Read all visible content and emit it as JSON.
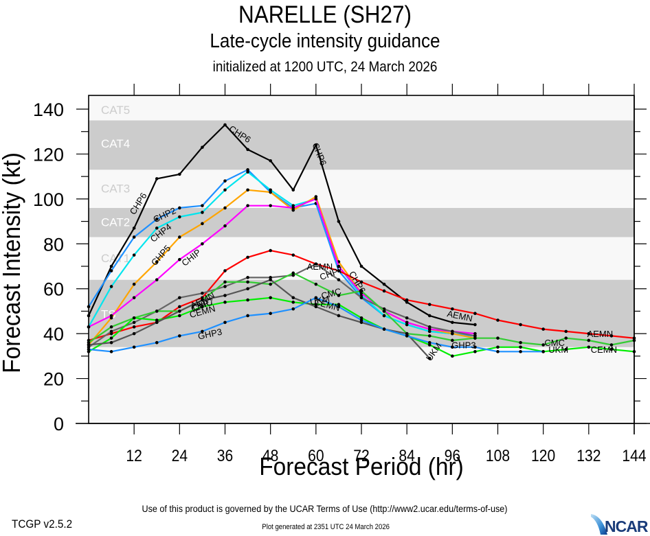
{
  "header": {
    "title": "NARELLE (SH27)",
    "subtitle": "Late-cycle intensity guidance",
    "init_line": "initialized at 1200 UTC, 24 March 2026"
  },
  "footer": {
    "terms": "Use of this product is governed by the UCAR Terms of Use (http://www2.ucar.edu/terms-of-use)",
    "version": "TCGP v2.5.2",
    "generated": "Plot generated at 2351 UTC   24 March 2026",
    "logo": "NCAR"
  },
  "chart_data": {
    "type": "line",
    "title": "NARELLE (SH27)",
    "subtitle": "Late-cycle intensity guidance",
    "xlabel": "Forecast Period (hr)",
    "ylabel": "Forecast Intensity (kt)",
    "xlim": [
      0,
      144
    ],
    "ylim": [
      0,
      140
    ],
    "xticks": [
      12,
      24,
      36,
      48,
      60,
      72,
      84,
      96,
      108,
      120,
      132,
      144
    ],
    "yticks": [
      0,
      20,
      40,
      60,
      80,
      100,
      120,
      140
    ],
    "grid": false,
    "bands": [
      {
        "label": "TS",
        "from": 34,
        "to": 64,
        "shade": "#cccccc",
        "label_color": "#ffffff",
        "label_at": 49
      },
      {
        "label": "CAT1",
        "from": 64,
        "to": 83,
        "shade": "#f8f8f8",
        "label_color": "#cccccc",
        "label_at": 74
      },
      {
        "label": "CAT2",
        "from": 83,
        "to": 96,
        "shade": "#cccccc",
        "label_color": "#ffffff",
        "label_at": 90
      },
      {
        "label": "CAT3",
        "from": 96,
        "to": 113,
        "shade": "#f8f8f8",
        "label_color": "#cccccc",
        "label_at": 105
      },
      {
        "label": "CAT4",
        "from": 113,
        "to": 135,
        "shade": "#cccccc",
        "label_color": "#ffffff",
        "label_at": 125
      },
      {
        "label": "CAT5",
        "from": 135,
        "to": 140,
        "shade": "#f8f8f8",
        "label_color": "#cccccc",
        "label_at": 140
      }
    ],
    "series": [
      {
        "name": "CHP6",
        "color": "#000000",
        "x": [
          0,
          6,
          12,
          18,
          24,
          30,
          36,
          42,
          48,
          54,
          60,
          66,
          72,
          78,
          84,
          90,
          96,
          102
        ],
        "y": [
          48,
          70,
          87,
          109,
          111,
          123,
          133,
          122,
          117,
          104,
          124,
          90,
          70,
          62,
          54,
          48,
          45,
          44
        ],
        "labels": [
          {
            "x": 13,
            "y": 98,
            "angle": -58
          },
          {
            "x": 40,
            "y": 129,
            "angle": 33
          },
          {
            "x": 61,
            "y": 120,
            "angle": 68
          },
          {
            "x": 71,
            "y": 63,
            "angle": 60
          }
        ]
      },
      {
        "name": "CHP2",
        "color": "#1e90ff",
        "x": [
          0,
          6,
          12,
          18,
          24,
          30,
          36,
          42,
          48,
          54,
          60,
          66,
          72,
          78,
          84,
          90,
          96,
          102
        ],
        "y": [
          52,
          68,
          83,
          91,
          96,
          97,
          108,
          113,
          103,
          96,
          98,
          68,
          56,
          48,
          44,
          41,
          40,
          39
        ],
        "labels": [
          {
            "x": 20,
            "y": 93,
            "angle": -25
          }
        ]
      },
      {
        "name": "CHP4",
        "color": "#00e5ee",
        "x": [
          0,
          6,
          12,
          18,
          24,
          30,
          36,
          42,
          48,
          54,
          60,
          66,
          72,
          78,
          84,
          90,
          96,
          102
        ],
        "y": [
          43,
          61,
          75,
          87,
          92,
          94,
          104,
          112,
          104,
          97,
          100,
          70,
          57,
          48,
          44,
          41,
          40,
          38
        ],
        "labels": [
          {
            "x": 19,
            "y": 85,
            "angle": -38
          }
        ]
      },
      {
        "name": "CHP5",
        "color": "#ffa500",
        "x": [
          0,
          6,
          12,
          18,
          24,
          30,
          36,
          42,
          48,
          54,
          60,
          66,
          72,
          78,
          84,
          90,
          96,
          102
        ],
        "y": [
          35,
          47,
          62,
          72,
          83,
          89,
          96,
          104,
          103,
          95,
          101,
          72,
          58,
          50,
          45,
          42,
          40,
          38
        ],
        "labels": [
          {
            "x": 19,
            "y": 75,
            "angle": -48
          }
        ]
      },
      {
        "name": "CHIP",
        "color": "#ff00ff",
        "x": [
          0,
          6,
          12,
          18,
          24,
          30,
          36,
          42,
          48,
          54,
          60,
          66,
          72,
          78,
          84,
          90,
          96,
          102
        ],
        "y": [
          43,
          48,
          56,
          64,
          73,
          80,
          88,
          97,
          97,
          96,
          100,
          70,
          58,
          50,
          45,
          42,
          41,
          40
        ],
        "labels": [
          {
            "x": 27,
            "y": 74,
            "angle": -38
          }
        ]
      },
      {
        "name": "AEMN",
        "color": "#ff0000",
        "x": [
          0,
          6,
          12,
          18,
          24,
          30,
          36,
          42,
          48,
          54,
          60,
          66,
          72,
          78,
          84,
          90,
          96,
          102,
          108,
          114,
          120,
          126,
          132,
          138,
          144
        ],
        "y": [
          37,
          40,
          43,
          45,
          52,
          56,
          68,
          74,
          77,
          75,
          71,
          68,
          63,
          59,
          55,
          53,
          51,
          49,
          46,
          44,
          42,
          41,
          40,
          39,
          38
        ],
        "labels": [
          {
            "x": 30,
            "y": 55,
            "angle": -28
          },
          {
            "x": 61,
            "y": 70,
            "angle": 0
          },
          {
            "x": 98,
            "y": 48,
            "angle": 12
          },
          {
            "x": 135,
            "y": 40,
            "angle": 0
          }
        ]
      },
      {
        "name": "CHP7",
        "color": "#666666",
        "x": [
          0,
          6,
          12,
          18,
          24,
          30,
          36,
          42,
          48,
          54,
          60,
          66,
          72,
          78,
          84,
          90,
          96,
          102
        ],
        "y": [
          34,
          41,
          45,
          50,
          56,
          58,
          61,
          65,
          65,
          66,
          71,
          64,
          56,
          51,
          47,
          43,
          41,
          39
        ],
        "labels": [
          {
            "x": 30,
            "y": 53,
            "angle": -20
          },
          {
            "x": 64,
            "y": 67,
            "angle": -20
          }
        ]
      },
      {
        "name": "CMC",
        "color": "#33cc33",
        "x": [
          0,
          6,
          12,
          18,
          24,
          30,
          36,
          42,
          48,
          54,
          60,
          66,
          72,
          78,
          84,
          90,
          96,
          102,
          108,
          114,
          120,
          126,
          132,
          138,
          144
        ],
        "y": [
          36,
          43,
          47,
          50,
          50,
          55,
          63,
          63,
          62,
          67,
          62,
          57,
          59,
          50,
          40,
          39,
          37,
          38,
          38,
          36,
          35,
          38,
          37,
          35,
          37
        ],
        "labels": [
          {
            "x": 30,
            "y": 53,
            "angle": -20
          },
          {
            "x": 64,
            "y": 58,
            "angle": -15
          },
          {
            "x": 123,
            "y": 36,
            "angle": 0
          }
        ]
      },
      {
        "name": "CEMN",
        "color": "#00ee00",
        "x": [
          0,
          6,
          12,
          18,
          24,
          30,
          36,
          42,
          48,
          54,
          60,
          66,
          72,
          78,
          84,
          90,
          96,
          102,
          108,
          114,
          120,
          126,
          132,
          138,
          144
        ],
        "y": [
          32,
          38,
          47,
          46,
          48,
          52,
          54,
          55,
          56,
          54,
          53,
          53,
          47,
          42,
          39,
          35,
          30,
          32,
          34,
          34,
          32,
          33,
          34,
          33,
          32
        ],
        "labels": [
          {
            "x": 30,
            "y": 50,
            "angle": -15
          },
          {
            "x": 63,
            "y": 53,
            "angle": 15
          },
          {
            "x": 136,
            "y": 33,
            "angle": 0
          }
        ]
      },
      {
        "name": "UKM",
        "color": "#555555",
        "x": [
          0,
          6,
          12,
          18,
          24,
          30,
          36,
          42,
          48,
          54,
          60,
          66,
          72,
          78,
          84,
          90
        ],
        "y": [
          35,
          36,
          40,
          45,
          50,
          55,
          57,
          60,
          64,
          56,
          52,
          48,
          45,
          42,
          40,
          29
        ],
        "labels": [
          {
            "x": 61,
            "y": 55,
            "angle": -10
          },
          {
            "x": 91,
            "y": 32,
            "angle": -55
          },
          {
            "x": 124,
            "y": 33,
            "angle": 0
          }
        ]
      },
      {
        "name": "GHP3",
        "color": "#1e90ff",
        "x": [
          0,
          6,
          12,
          18,
          24,
          30,
          36,
          42,
          48,
          54,
          60,
          66,
          72,
          78,
          84,
          90,
          96,
          102,
          108,
          114,
          120
        ],
        "y": [
          33,
          32,
          34,
          36,
          39,
          41,
          45,
          48,
          49,
          51,
          56,
          52,
          46,
          42,
          39,
          36,
          34,
          34,
          32,
          32,
          32
        ],
        "labels": [
          {
            "x": 32,
            "y": 40,
            "angle": -12
          },
          {
            "x": 99,
            "y": 35,
            "angle": 0
          }
        ]
      }
    ]
  }
}
